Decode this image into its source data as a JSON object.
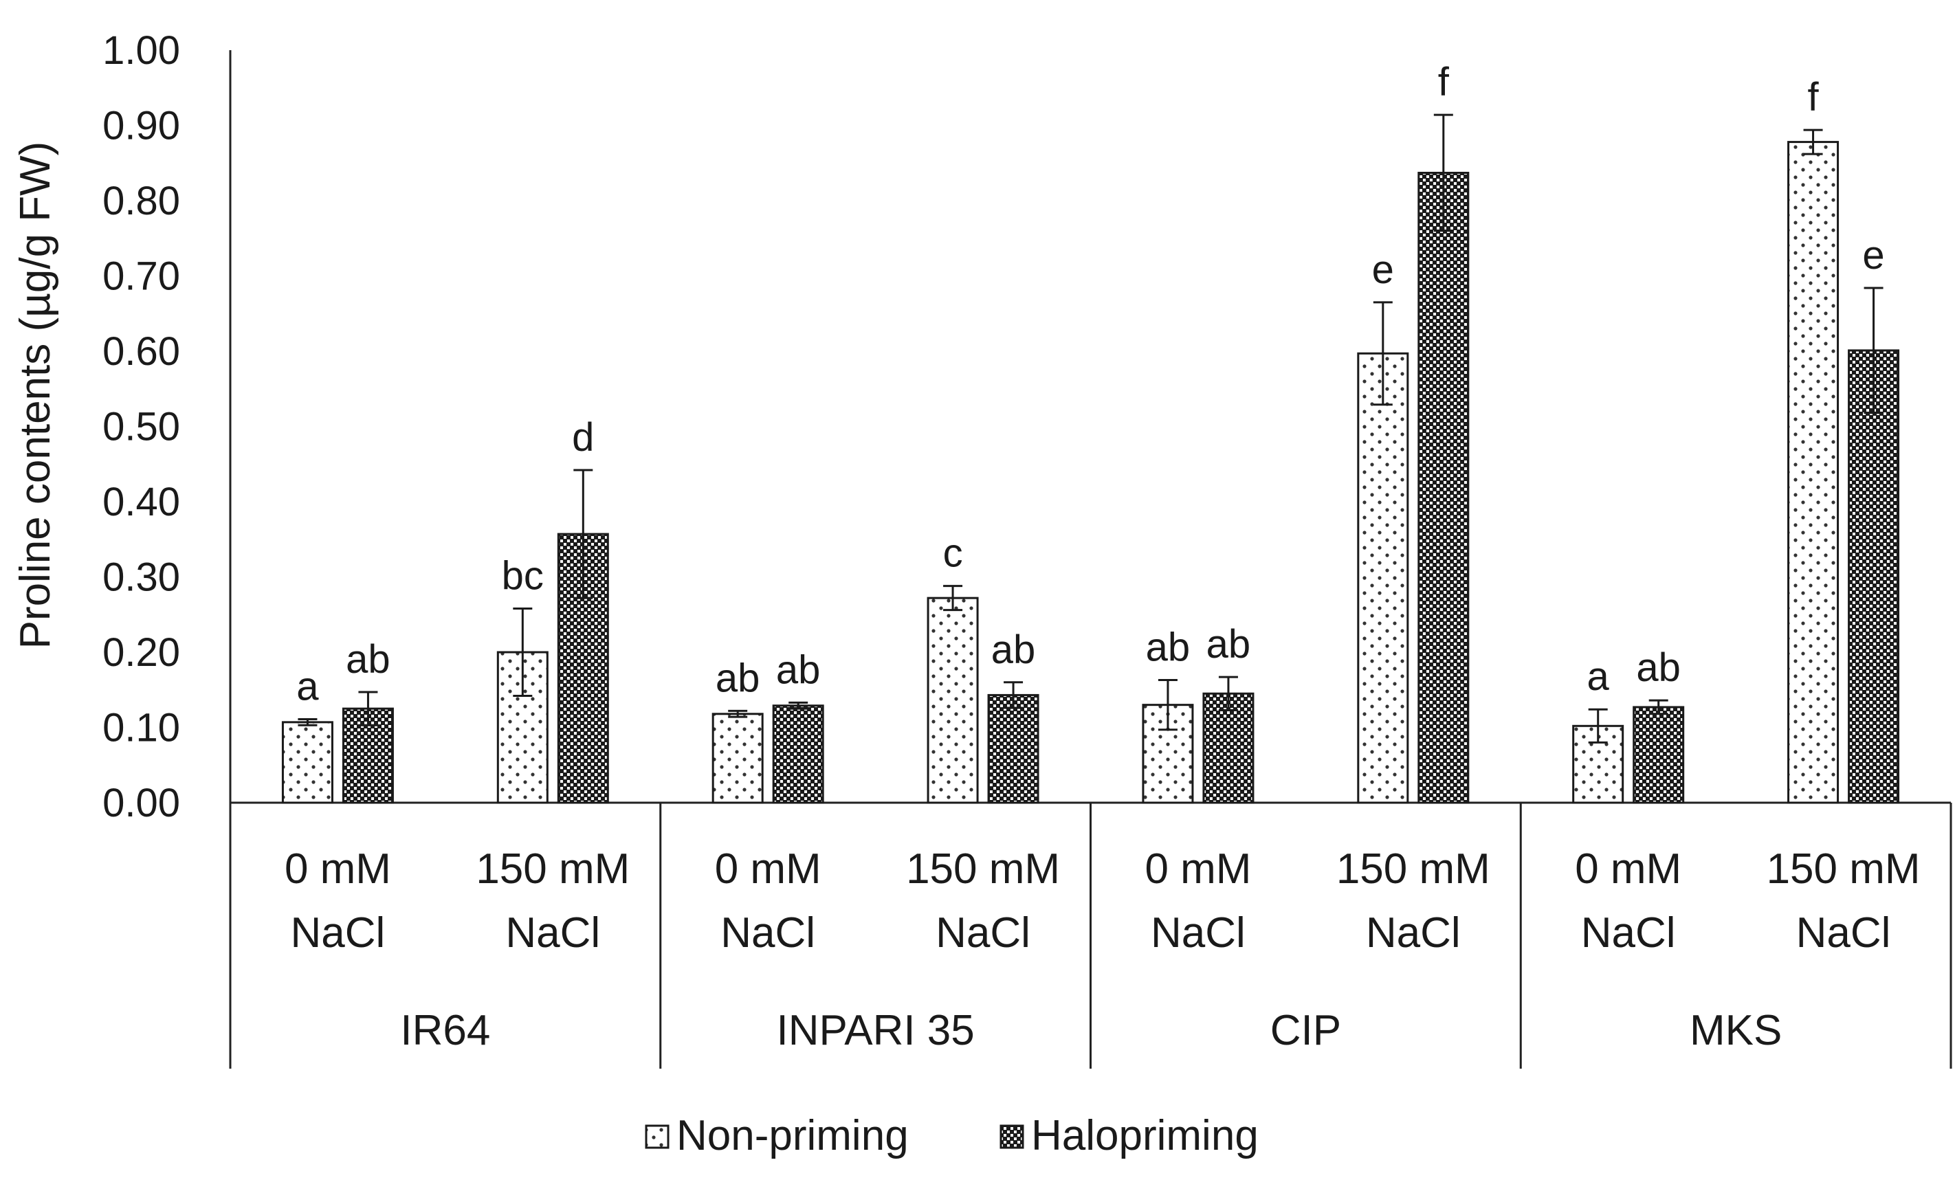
{
  "chart_data": {
    "type": "bar",
    "title": "",
    "ylabel": "Proline contents (µg/g FW)",
    "xlabel": "",
    "ylim": [
      0,
      1.0
    ],
    "yticks": [
      "0.00",
      "0.10",
      "0.20",
      "0.30",
      "0.40",
      "0.50",
      "0.60",
      "0.70",
      "0.80",
      "0.90",
      "1.00"
    ],
    "groups": [
      "IR64",
      "INPARI 35",
      "CIP",
      "MKS"
    ],
    "treatments": [
      {
        "line1": "0 mM",
        "line2": "NaCl"
      },
      {
        "line1": "150 mM",
        "line2": "NaCl"
      }
    ],
    "series": [
      {
        "name": "Non-priming",
        "pattern": "dots",
        "values": [
          0.107,
          0.2,
          0.118,
          0.272,
          0.13,
          0.597,
          0.102,
          0.878
        ],
        "errors": [
          0.004,
          0.058,
          0.004,
          0.016,
          0.033,
          0.068,
          0.022,
          0.016
        ],
        "labels": [
          "a",
          "bc",
          "ab",
          "c",
          "ab",
          "e",
          "a",
          "f"
        ]
      },
      {
        "name": "Halopriming",
        "pattern": "checker",
        "values": [
          0.125,
          0.357,
          0.129,
          0.143,
          0.145,
          0.837,
          0.127,
          0.601
        ],
        "errors": [
          0.022,
          0.085,
          0.004,
          0.017,
          0.022,
          0.077,
          0.009,
          0.083
        ],
        "labels": [
          "ab",
          "d",
          "ab",
          "ab",
          "ab",
          "f",
          "ab",
          "e"
        ]
      }
    ],
    "legend_position": "bottom-center"
  }
}
